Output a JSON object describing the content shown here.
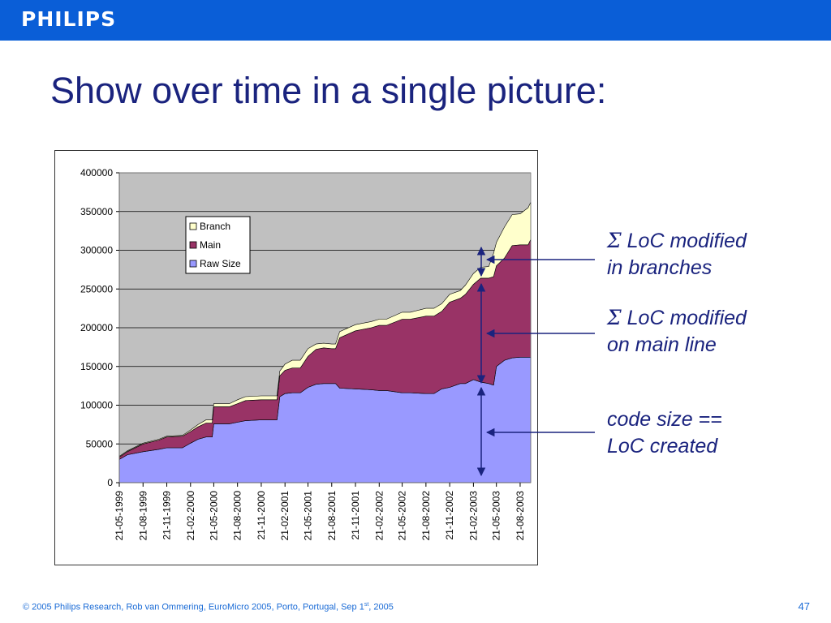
{
  "header": {
    "logo": "PHILIPS"
  },
  "slide": {
    "title": "Show over time in a single picture:"
  },
  "annotations": {
    "branches": {
      "line1": "LoC modified",
      "line2": "in branches"
    },
    "main": {
      "line1": "LoC modified",
      "line2": "on main line"
    },
    "raw": {
      "line1": "code size ==",
      "line2": "LoC created"
    },
    "sigma": "Σ"
  },
  "footer": {
    "text_a": "© 2005 Philips Research,  Rob van Ommering, EuroMicro 2005, Porto, Portugal, Sep 1",
    "text_sup": "st",
    "text_b": ", 2005",
    "page": "47"
  },
  "colors": {
    "branch": "#ffffcc",
    "main": "#993366",
    "raw": "#9999ff",
    "plot_bg": "#c0c0c0",
    "annotation": "#1a237e",
    "arrow": "#1a237e"
  },
  "chart_data": {
    "type": "area",
    "stacked": true,
    "ylim": [
      0,
      400000
    ],
    "yticks": [
      "0",
      "50000",
      "100000",
      "150000",
      "200000",
      "250000",
      "300000",
      "350000",
      "400000"
    ],
    "xticks": [
      "21-05-1999",
      "21-08-1999",
      "21-11-1999",
      "21-02-2000",
      "21-05-2000",
      "21-08-2000",
      "21-11-2000",
      "21-02-2001",
      "21-05-2001",
      "21-08-2001",
      "21-11-2001",
      "21-02-2002",
      "21-05-2002",
      "21-08-2002",
      "21-11-2002",
      "21-02-2003",
      "21-05-2003",
      "21-08-2003"
    ],
    "legend": {
      "position": "inside-top-left",
      "entries": [
        "Branch",
        "Main",
        "Raw  Size"
      ]
    },
    "x": [
      "1999-05-21",
      "1999-06-21",
      "1999-08-21",
      "1999-10-21",
      "1999-11-21",
      "2000-01-21",
      "2000-02-21",
      "2000-03-21",
      "2000-04-21",
      "2000-05-15",
      "2000-05-21",
      "2000-07-21",
      "2000-08-21",
      "2000-09-21",
      "2000-11-21",
      "2001-01-21",
      "2001-02-01",
      "2001-02-21",
      "2001-03-21",
      "2001-04-21",
      "2001-05-21",
      "2001-06-21",
      "2001-07-21",
      "2001-08-21",
      "2001-09-05",
      "2001-09-21",
      "2001-11-21",
      "2002-01-21",
      "2002-02-21",
      "2002-03-21",
      "2002-05-21",
      "2002-06-21",
      "2002-08-21",
      "2002-09-21",
      "2002-10-21",
      "2002-11-21",
      "2003-01-01",
      "2003-01-21",
      "2003-02-21",
      "2003-03-21",
      "2003-04-21",
      "2003-05-10",
      "2003-05-21",
      "2003-06-21",
      "2003-07-21",
      "2003-08-21",
      "2003-09-21",
      "2003-10-01"
    ],
    "series": [
      {
        "name": "Raw  Size",
        "values": [
          30000,
          36000,
          40000,
          43000,
          45000,
          45000,
          51000,
          56000,
          59000,
          59000,
          76000,
          76000,
          78000,
          80000,
          81000,
          81000,
          111000,
          115000,
          116000,
          116000,
          123000,
          127000,
          128000,
          128000,
          128000,
          122000,
          121000,
          120000,
          119000,
          119000,
          116000,
          116000,
          115000,
          115000,
          121000,
          123000,
          128000,
          128000,
          133000,
          130000,
          128000,
          126000,
          150000,
          158000,
          161000,
          162000,
          162000,
          162000
        ]
      },
      {
        "name": "Main",
        "values": [
          3000,
          4000,
          10000,
          12000,
          14000,
          15000,
          15000,
          16000,
          18000,
          18000,
          22000,
          22000,
          24000,
          26000,
          26000,
          26000,
          27000,
          30000,
          32000,
          32000,
          40000,
          45000,
          46000,
          45000,
          45000,
          65000,
          75000,
          80000,
          84000,
          84000,
          95000,
          95000,
          100000,
          100000,
          100000,
          110000,
          110000,
          115000,
          123000,
          134000,
          136000,
          140000,
          130000,
          132000,
          145000,
          145000,
          145000,
          152000
        ]
      },
      {
        "name": "Branch",
        "values": [
          1000,
          1000,
          1000,
          1000,
          1000,
          1000,
          2000,
          3000,
          4000,
          4000,
          4000,
          4000,
          5000,
          5000,
          5000,
          5000,
          6000,
          8000,
          10000,
          10000,
          10000,
          7000,
          6000,
          6000,
          6000,
          8000,
          8000,
          8000,
          8000,
          8000,
          9000,
          9000,
          10000,
          10000,
          10000,
          10000,
          10000,
          12000,
          14000,
          14000,
          15000,
          30000,
          30000,
          40000,
          40000,
          40000,
          48000,
          48000
        ]
      }
    ]
  }
}
